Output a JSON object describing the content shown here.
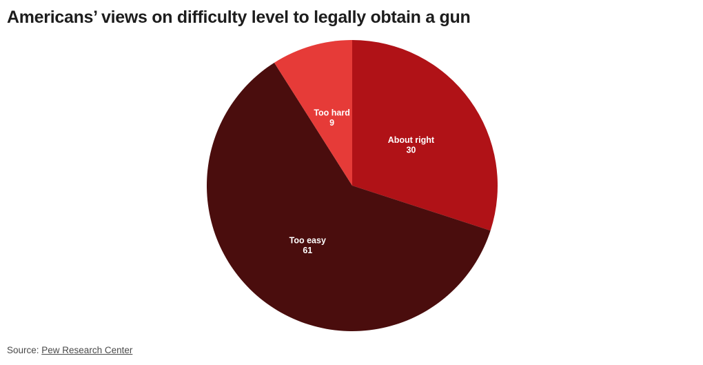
{
  "title": "Americans’ views on difficulty level to legally obtain a gun",
  "source": {
    "prefix": "Source: ",
    "link_text": "Pew Research Center"
  },
  "chart_data": {
    "type": "pie",
    "title": "Americans’ views on difficulty level to legally obtain a gun",
    "categories": [
      "About right",
      "Too easy",
      "Too hard"
    ],
    "values": [
      30,
      61,
      9
    ],
    "slices": [
      {
        "label": "About right",
        "value": 30,
        "color": "#b01217"
      },
      {
        "label": "Too easy",
        "value": 61,
        "color": "#4a0d0d"
      },
      {
        "label": "Too hard",
        "value": 9,
        "color": "#e63b38"
      }
    ],
    "start_angle_deg": 0,
    "direction": "clockwise",
    "label_color": "#ffffff",
    "legend": "none",
    "source_text": "Source: Pew Research Center"
  }
}
